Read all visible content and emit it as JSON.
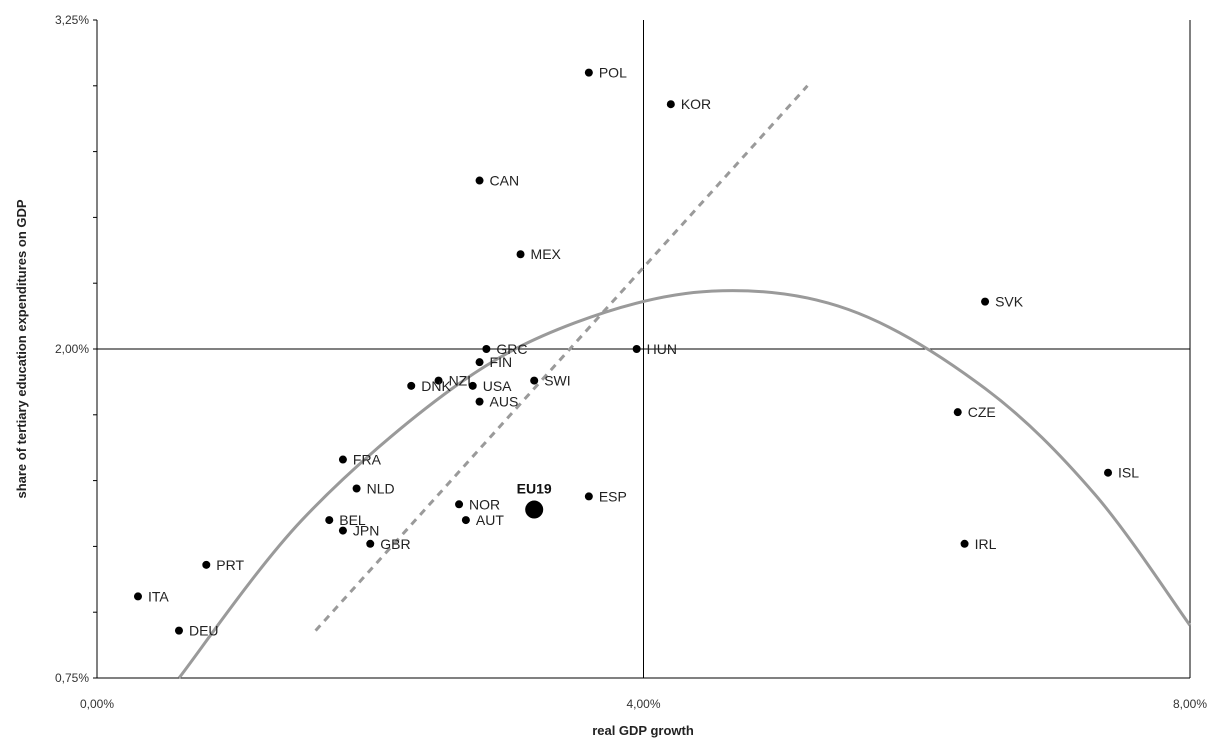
{
  "chart_data": {
    "type": "scatter",
    "xlabel": "real GDP growth",
    "ylabel": "share of tertiary education expenditures on GDP",
    "xlim": [
      0,
      8
    ],
    "ylim": [
      0.75,
      3.25
    ],
    "x_tick_labels": [
      "0,00%",
      "4,00%",
      "8,00%"
    ],
    "y_tick_labels": [
      "0,75%",
      "2,00%",
      "3,25%"
    ],
    "reference_lines": {
      "x": 4,
      "y": 2
    },
    "points": [
      {
        "label": "POL",
        "x": 3.6,
        "y": 3.05
      },
      {
        "label": "KOR",
        "x": 4.2,
        "y": 2.93
      },
      {
        "label": "CAN",
        "x": 2.8,
        "y": 2.64
      },
      {
        "label": "MEX",
        "x": 3.1,
        "y": 2.36
      },
      {
        "label": "SVK",
        "x": 6.5,
        "y": 2.18
      },
      {
        "label": "GRC",
        "x": 2.85,
        "y": 2.0
      },
      {
        "label": "HUN",
        "x": 3.95,
        "y": 2.0
      },
      {
        "label": "FIN",
        "x": 2.8,
        "y": 1.95
      },
      {
        "label": "NZL",
        "x": 2.5,
        "y": 1.88
      },
      {
        "label": "USA",
        "x": 2.75,
        "y": 1.86
      },
      {
        "label": "SWI",
        "x": 3.2,
        "y": 1.88
      },
      {
        "label": "DNK",
        "x": 2.3,
        "y": 1.86
      },
      {
        "label": "AUS",
        "x": 2.8,
        "y": 1.8
      },
      {
        "label": "CZE",
        "x": 6.3,
        "y": 1.76
      },
      {
        "label": "FRA",
        "x": 1.8,
        "y": 1.58
      },
      {
        "label": "ISL",
        "x": 7.4,
        "y": 1.53
      },
      {
        "label": "NLD",
        "x": 1.9,
        "y": 1.47
      },
      {
        "label": "NOR",
        "x": 2.65,
        "y": 1.41
      },
      {
        "label": "ESP",
        "x": 3.6,
        "y": 1.44
      },
      {
        "label": "BEL",
        "x": 1.7,
        "y": 1.35
      },
      {
        "label": "AUT",
        "x": 2.7,
        "y": 1.35
      },
      {
        "label": "JPN",
        "x": 1.8,
        "y": 1.31
      },
      {
        "label": "GBR",
        "x": 2.0,
        "y": 1.26
      },
      {
        "label": "IRL",
        "x": 6.35,
        "y": 1.26
      },
      {
        "label": "PRT",
        "x": 0.8,
        "y": 1.18
      },
      {
        "label": "ITA",
        "x": 0.3,
        "y": 1.06
      },
      {
        "label": "DEU",
        "x": 0.6,
        "y": 0.93
      }
    ],
    "highlight_point": {
      "label": "EU19",
      "x": 3.2,
      "y": 1.39
    },
    "trend_lines": [
      {
        "style": "dashed",
        "points": [
          [
            1.6,
            0.93
          ],
          [
            5.2,
            3.0
          ]
        ]
      },
      {
        "style": "solid",
        "curve": "quadratic",
        "points": [
          [
            0.6,
            0.75
          ],
          [
            1.5,
            1.35
          ],
          [
            2.6,
            1.85
          ],
          [
            3.5,
            2.1
          ],
          [
            4.5,
            2.22
          ],
          [
            5.5,
            2.15
          ],
          [
            6.5,
            1.85
          ],
          [
            7.3,
            1.45
          ],
          [
            8.0,
            0.95
          ]
        ]
      }
    ],
    "grid": false,
    "legend": "none"
  }
}
